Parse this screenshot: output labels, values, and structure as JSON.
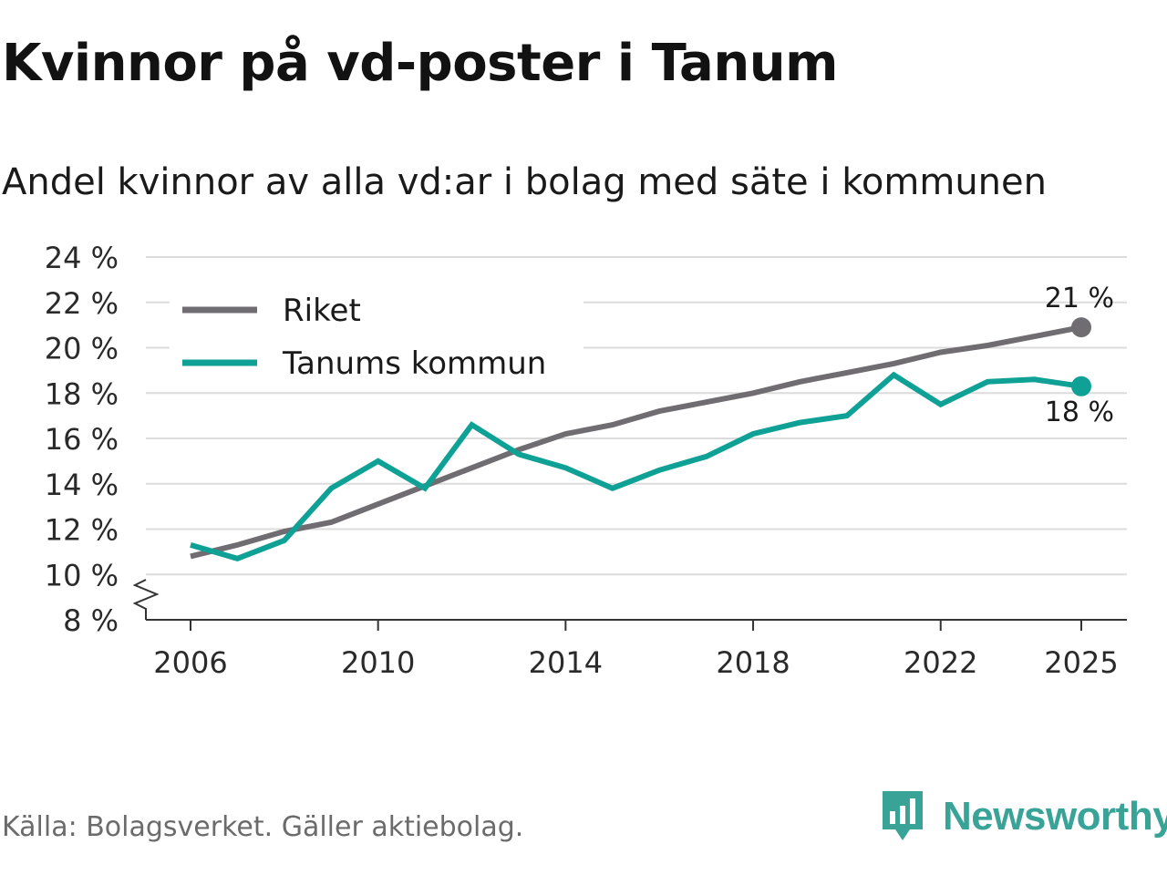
{
  "title": "Kvinnor på vd-poster i Tanum",
  "subtitle": "Andel kvinnor av alla vd:ar i bolag med säte i kommunen",
  "source": "Källa: Bolagsverket. Gäller aktiebolag.",
  "brand": "Newsworthy",
  "colors": {
    "riket": "#6f6d72",
    "tanum": "#0fa196",
    "grid": "#dcdcdc",
    "axis": "#333333",
    "brand": "#3aa397"
  },
  "chart_data": {
    "type": "line",
    "x": [
      2006,
      2007,
      2008,
      2009,
      2010,
      2011,
      2012,
      2013,
      2014,
      2015,
      2016,
      2017,
      2018,
      2019,
      2020,
      2021,
      2022,
      2023,
      2024,
      2025
    ],
    "series": [
      {
        "name": "Riket",
        "color_key": "riket",
        "values": [
          10.8,
          11.3,
          11.9,
          12.3,
          13.1,
          13.9,
          14.7,
          15.5,
          16.2,
          16.6,
          17.2,
          17.6,
          18.0,
          18.5,
          18.9,
          19.3,
          19.8,
          20.1,
          20.5,
          20.9
        ],
        "end_label": "21 %"
      },
      {
        "name": "Tanums kommun",
        "color_key": "tanum",
        "values": [
          11.3,
          10.7,
          11.5,
          13.8,
          15.0,
          13.8,
          16.6,
          15.3,
          14.7,
          13.8,
          14.6,
          15.2,
          16.2,
          16.7,
          17.0,
          18.8,
          17.5,
          18.5,
          18.6,
          18.3
        ],
        "end_label": "18 %"
      }
    ],
    "xticks": [
      2006,
      2010,
      2014,
      2018,
      2022,
      2025
    ],
    "xtick_labels": [
      "2006",
      "2010",
      "2014",
      "2018",
      "2022",
      "2025"
    ],
    "yticks": [
      8,
      10,
      12,
      14,
      16,
      18,
      20,
      22,
      24
    ],
    "ytick_labels": [
      "8 %",
      "10 %",
      "12 %",
      "14 %",
      "16 %",
      "18 %",
      "20 %",
      "22 %",
      "24 %"
    ],
    "xlim": [
      2006,
      2025
    ],
    "ylim": [
      8,
      24
    ],
    "axis_break": true,
    "legend_position": "top-left",
    "xlabel": "",
    "ylabel": ""
  }
}
